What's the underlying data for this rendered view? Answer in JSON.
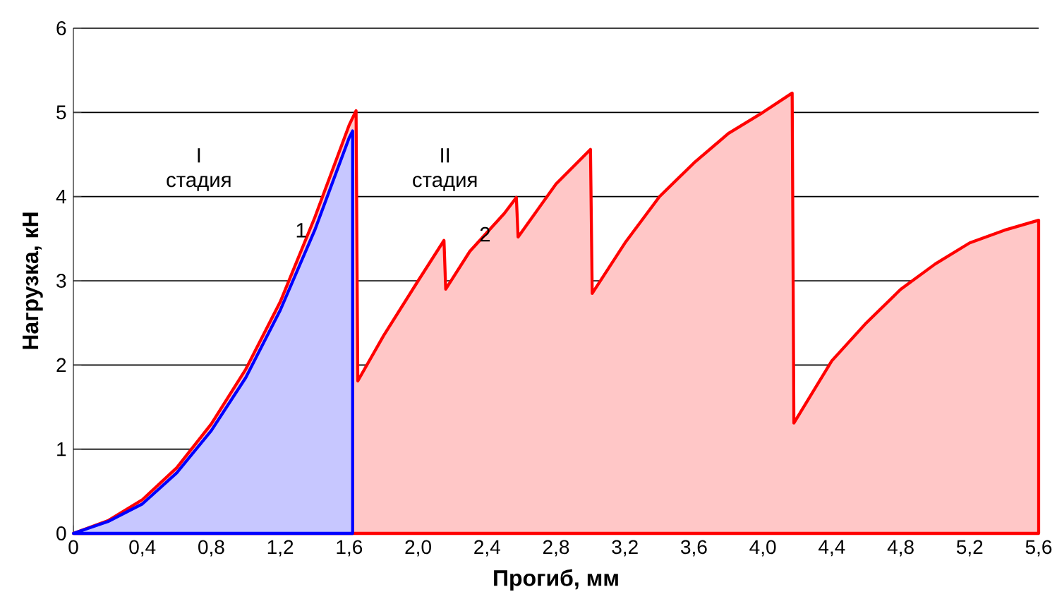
{
  "chart_data": {
    "type": "area",
    "xlabel": "Прогиб, мм",
    "ylabel": "Нагрузка, кН",
    "xlim": [
      0,
      5.6
    ],
    "ylim": [
      0,
      6
    ],
    "xticks": [
      0,
      {
        "value": 0.4,
        "label": "0,4"
      },
      {
        "value": 0.8,
        "label": "0,8"
      },
      {
        "value": 1.2,
        "label": "1,2"
      },
      {
        "value": 1.6,
        "label": "1,6"
      },
      {
        "value": 2.0,
        "label": "2,0"
      },
      {
        "value": 2.4,
        "label": "2,4"
      },
      {
        "value": 2.8,
        "label": "2,8"
      },
      {
        "value": 3.2,
        "label": "3,2"
      },
      {
        "value": 3.6,
        "label": "3,6"
      },
      {
        "value": 4.0,
        "label": "4,0"
      },
      {
        "value": 4.4,
        "label": "4,4"
      },
      {
        "value": 4.8,
        "label": "4,8"
      },
      {
        "value": 5.2,
        "label": "5,2"
      },
      {
        "value": 5.6,
        "label": "5,6"
      }
    ],
    "yticks": [
      0,
      1,
      2,
      3,
      4,
      5,
      6
    ],
    "grid": "y",
    "legend": false,
    "series": [
      {
        "name": "2",
        "color": "#ff0000",
        "x": [
          0,
          0.2,
          0.4,
          0.6,
          0.8,
          1.0,
          1.2,
          1.4,
          1.6,
          1.64,
          1.65,
          1.8,
          2.0,
          2.15,
          2.16,
          2.3,
          2.5,
          2.57,
          2.58,
          2.8,
          3.0,
          3.01,
          3.2,
          3.4,
          3.6,
          3.8,
          4.0,
          4.17,
          4.18,
          4.4,
          4.6,
          4.8,
          5.0,
          5.2,
          5.4,
          5.6
        ],
        "values": [
          0,
          0.15,
          0.4,
          0.78,
          1.3,
          1.95,
          2.75,
          3.75,
          4.85,
          5.02,
          1.81,
          2.35,
          3.0,
          3.48,
          2.9,
          3.35,
          3.8,
          3.99,
          3.52,
          4.15,
          4.56,
          2.85,
          3.45,
          4.0,
          4.4,
          4.75,
          5.0,
          5.23,
          1.31,
          2.05,
          2.5,
          2.9,
          3.2,
          3.45,
          3.6,
          3.72
        ]
      },
      {
        "name": "1",
        "color": "#0000ff",
        "x": [
          0,
          0.2,
          0.4,
          0.6,
          0.8,
          1.0,
          1.2,
          1.4,
          1.6,
          1.62
        ],
        "values": [
          0,
          0.14,
          0.35,
          0.72,
          1.22,
          1.85,
          2.65,
          3.6,
          4.7,
          4.78
        ]
      }
    ],
    "annotations": [
      "I стадия",
      "II стадия"
    ]
  }
}
